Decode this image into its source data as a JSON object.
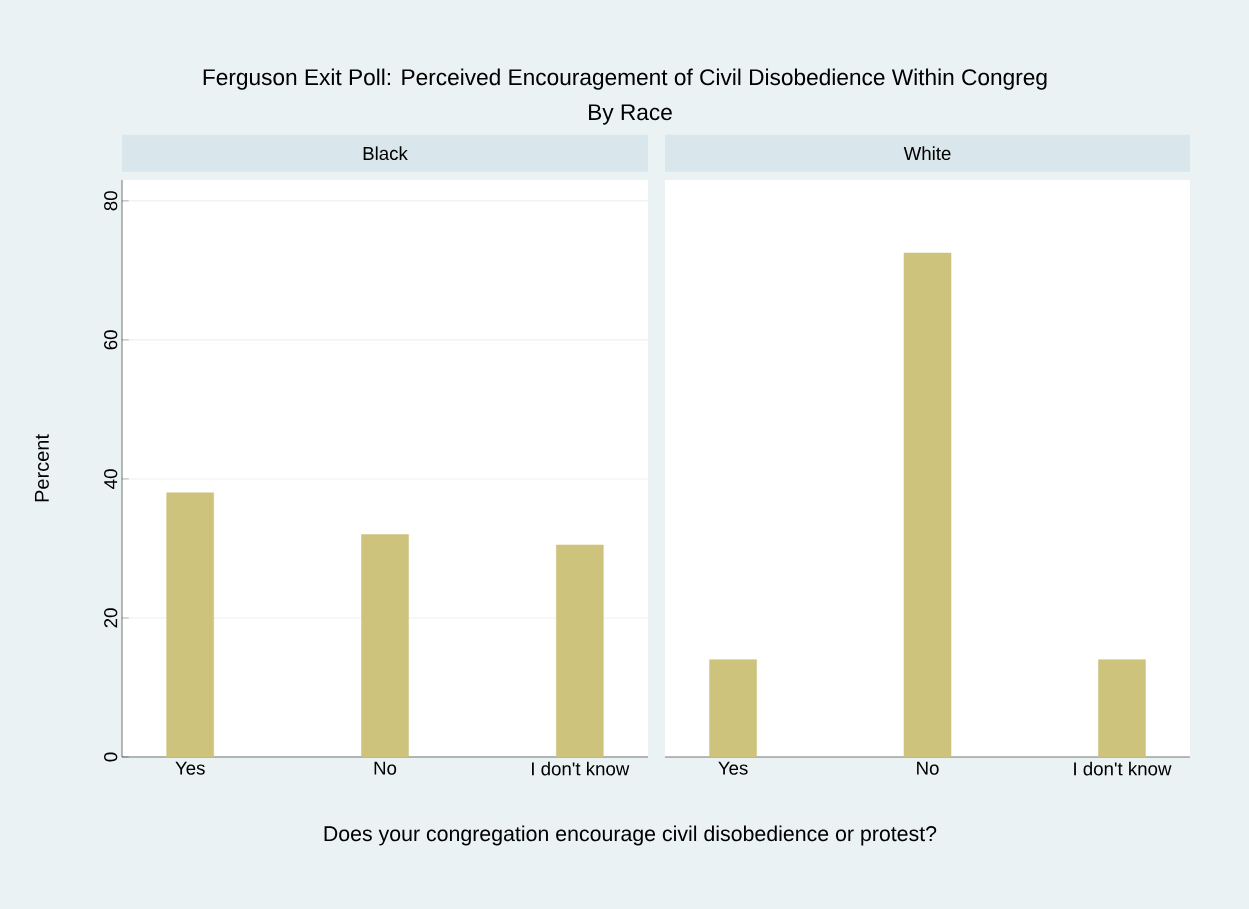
{
  "chart_data": [
    {
      "type": "bar",
      "title": "Black",
      "annotations": [
        "Ferguson Exit Poll: Perceived Encouragement of Civil Disobedience Within Congreg",
        "By Race"
      ],
      "xlabel": "Does your congregation encourage civil disobedience or protest?",
      "ylabel": "Percent",
      "categories": [
        "Yes",
        "No",
        "I don't know"
      ],
      "values": [
        38,
        32,
        30.5
      ],
      "color": "#cdc37d",
      "ylim": [
        0,
        83
      ],
      "yticks": [
        0,
        20,
        40,
        60,
        80
      ],
      "grid": "y"
    },
    {
      "type": "bar",
      "title": "White",
      "categories": [
        "Yes",
        "No",
        "I don't know"
      ],
      "values": [
        14,
        72.5,
        14
      ],
      "color": "#cdc37d",
      "ylim": [
        0,
        83
      ],
      "yticks": [
        0,
        20,
        40,
        60,
        80
      ],
      "grid": "y",
      "tick_labels": "x"
    }
  ]
}
